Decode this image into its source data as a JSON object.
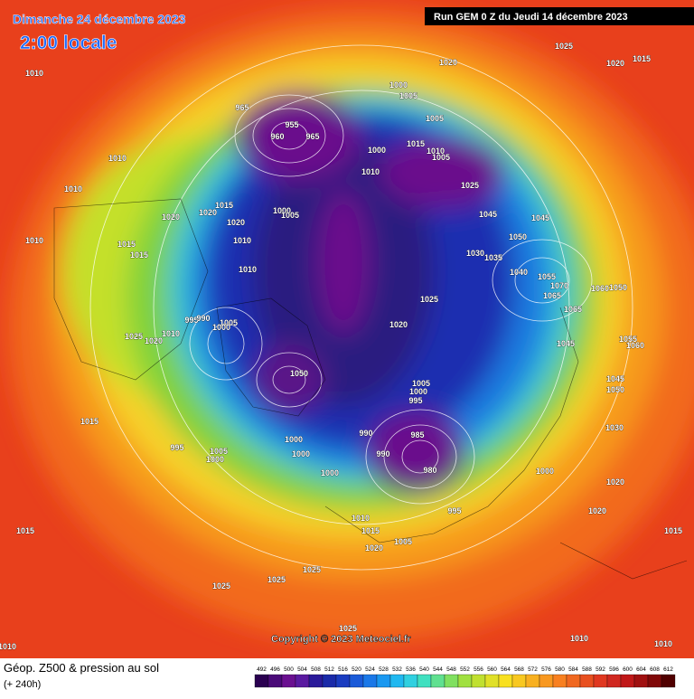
{
  "header": {
    "title": "Dimanche 24 décembre 2023",
    "time": "2:00 locale",
    "run": "Run GEM 0 Z du Jeudi 14 décembre 2023"
  },
  "map": {
    "copyright": "Copyright © 2023 Meteociel.fr",
    "pressure_labels": [
      "1010",
      "1020",
      "1025",
      "1020",
      "1015",
      "1000",
      "1005",
      "965",
      "955",
      "965",
      "960",
      "1005",
      "1010",
      "1015",
      "1000",
      "1010",
      "1005",
      "1010",
      "1025",
      "1010",
      "1045",
      "1045",
      "1015",
      "1020",
      "1000",
      "1005",
      "1020",
      "1020",
      "1050",
      "1010",
      "1010",
      "1015",
      "1015",
      "1030",
      "1035",
      "1010",
      "1040",
      "1055",
      "1070",
      "1060",
      "1050",
      "1065",
      "1025",
      "1065",
      "995",
      "990",
      "1005",
      "1000",
      "1020",
      "1010",
      "1025",
      "1020",
      "1045",
      "1055",
      "1060",
      "1050",
      "1045",
      "1050",
      "1005",
      "1000",
      "995",
      "1015",
      "1030",
      "990",
      "985",
      "1000",
      "995",
      "1005",
      "1000",
      "1000",
      "990",
      "980",
      "1000",
      "1000",
      "1020",
      "995",
      "1020",
      "1010",
      "1015",
      "1015",
      "1015",
      "1005",
      "1020",
      "1025",
      "1025",
      "1025",
      "1025",
      "1010",
      "1010",
      "1010"
    ]
  },
  "legend": {
    "title": "Géop. Z500 & pression au sol",
    "lead_time": "(+ 240h)",
    "scale": [
      492,
      496,
      500,
      504,
      508,
      512,
      516,
      520,
      524,
      528,
      532,
      536,
      540,
      544,
      548,
      552,
      556,
      560,
      564,
      568,
      572,
      576,
      580,
      584,
      588,
      592,
      596,
      600,
      604,
      608,
      612
    ]
  }
}
